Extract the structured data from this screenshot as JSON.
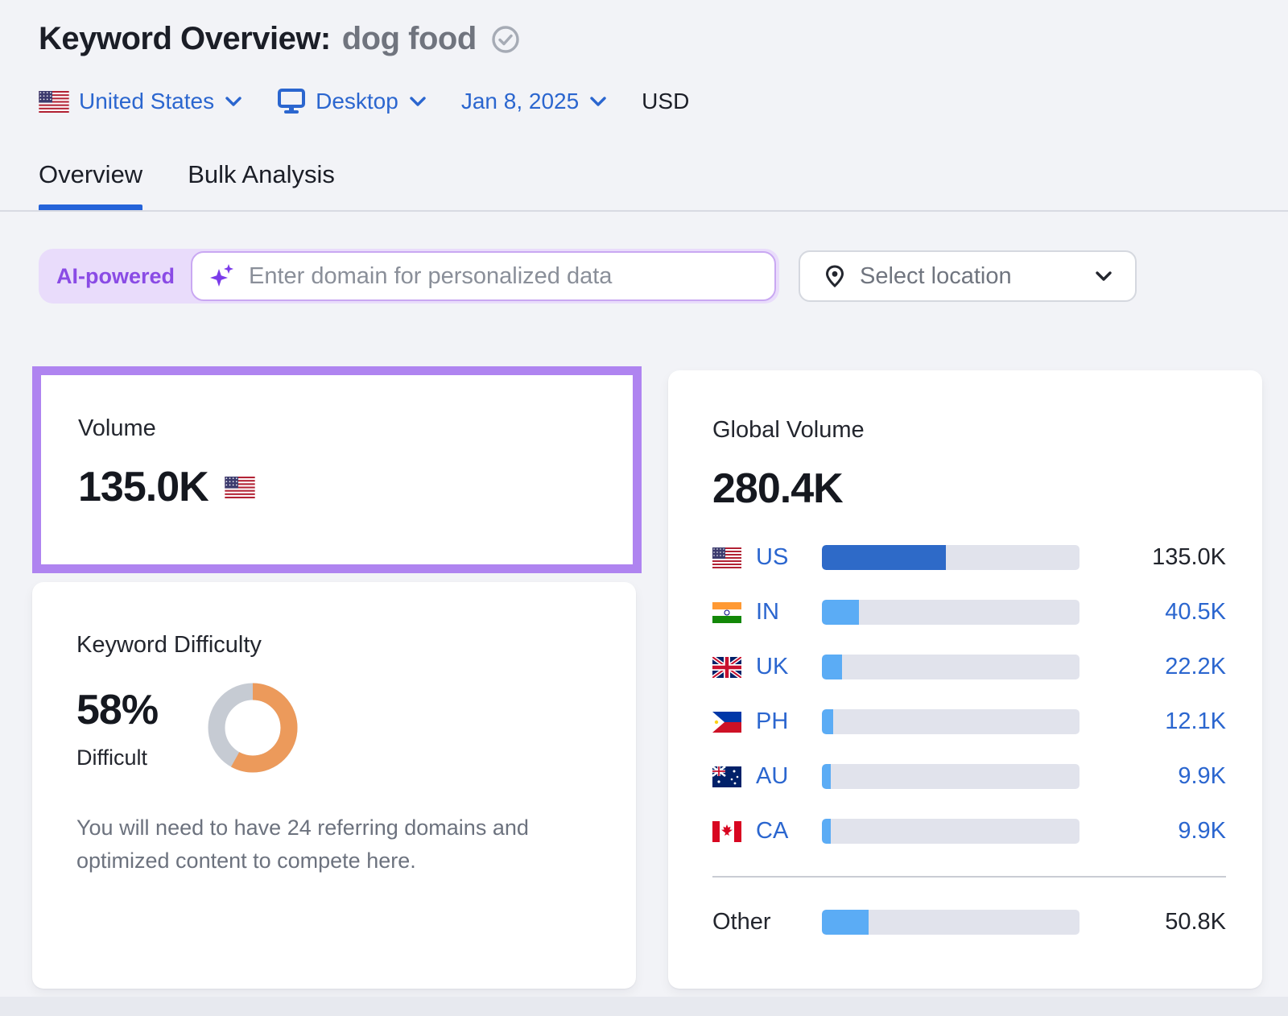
{
  "header": {
    "title": "Keyword Overview:",
    "keyword": "dog food"
  },
  "filters": {
    "country": "United States",
    "device": "Desktop",
    "date": "Jan 8, 2025",
    "currency": "USD"
  },
  "tabs": [
    {
      "label": "Overview",
      "active": true
    },
    {
      "label": "Bulk Analysis",
      "active": false
    }
  ],
  "search": {
    "ai_badge": "AI-powered",
    "placeholder": "Enter domain for personalized data",
    "location_label": "Select location"
  },
  "volume_card": {
    "label": "Volume",
    "value": "135.0K",
    "flag": "us"
  },
  "difficulty_card": {
    "label": "Keyword Difficulty",
    "percent": "58%",
    "percent_value": 58,
    "level": "Difficult",
    "description": "You will need to have 24 referring domains and optimized content to compete here."
  },
  "global_card": {
    "label": "Global Volume",
    "total": "280.4K",
    "rows": [
      {
        "code": "US",
        "flag": "us",
        "value": "135.0K",
        "share": 48.1,
        "emphasis": true,
        "value_link": false
      },
      {
        "code": "IN",
        "flag": "in",
        "value": "40.5K",
        "share": 14.4,
        "emphasis": false,
        "value_link": true
      },
      {
        "code": "UK",
        "flag": "uk",
        "value": "22.2K",
        "share": 7.9,
        "emphasis": false,
        "value_link": true
      },
      {
        "code": "PH",
        "flag": "ph",
        "value": "12.1K",
        "share": 4.3,
        "emphasis": false,
        "value_link": true
      },
      {
        "code": "AU",
        "flag": "au",
        "value": "9.9K",
        "share": 3.5,
        "emphasis": false,
        "value_link": true
      },
      {
        "code": "CA",
        "flag": "ca",
        "value": "9.9K",
        "share": 3.5,
        "emphasis": false,
        "value_link": true
      }
    ],
    "other_row": {
      "label": "Other",
      "value": "50.8K",
      "share": 18.1
    }
  },
  "chart_data": {
    "type": "bar",
    "title": "Global Volume",
    "total": "280.4K",
    "categories": [
      "US",
      "IN",
      "UK",
      "PH",
      "AU",
      "CA",
      "Other"
    ],
    "values": [
      135000,
      40500,
      22200,
      12100,
      9900,
      9900,
      50800
    ],
    "donut": {
      "label": "Keyword Difficulty",
      "percent": 58
    }
  },
  "colors": {
    "page-bg": "#F2F3F7",
    "dark": "#1B1E27",
    "link-blue": "#2B66CF",
    "tab-underline": "#2563D9",
    "divider": "#D8DAE2",
    "purple": "#8A4BE5",
    "purple-border": "#AF84F0",
    "lavender": "#E9DCFB",
    "input-border": "#C9A8F2",
    "bar-track": "#E1E3EC",
    "bar-dark": "#2E6AC8",
    "bar-light": "#5BACF5",
    "donut-orange": "#EC9A5B",
    "donut-gray": "#C6CBD3"
  }
}
